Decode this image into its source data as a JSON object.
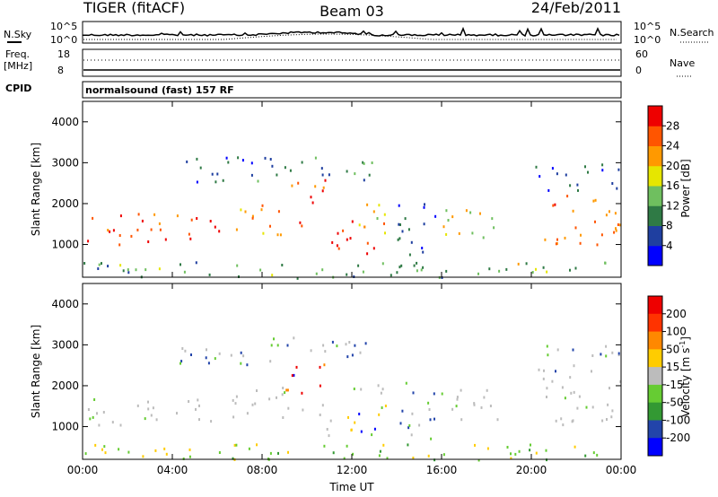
{
  "header": {
    "radar": "TIGER (fitACF)",
    "beam": "Beam 03",
    "date": "24/Feb/2011"
  },
  "noise_panel": {
    "left_label": "N.Sky",
    "right_label": "N.Search",
    "left_ticks": [
      "10^5",
      "10^0"
    ],
    "right_ticks": [
      "10^5",
      "10^0"
    ]
  },
  "freq_panel": {
    "left_label_1": "Freq.",
    "left_label_2": "[MHz]",
    "right_label": "Nave",
    "left_ticks": [
      "18",
      "8"
    ],
    "right_ticks": [
      "60",
      "0"
    ]
  },
  "cpid_panel": {
    "label": "CPID",
    "text": "normalsound (fast) 157 RF"
  },
  "colors": {
    "power_scale": [
      "#0000ff",
      "#1f3fa0",
      "#2f7a45",
      "#6fbf5f",
      "#e6e600",
      "#ff9900",
      "#ff5500",
      "#ee0000"
    ],
    "velocity_scale": [
      "#ee0000",
      "#ff3300",
      "#ff8800",
      "#ffcc00",
      "#bcbcbc",
      "#66cc33",
      "#339933",
      "#2244aa",
      "#0000ff"
    ]
  },
  "chart_data": [
    {
      "type": "heatmap",
      "name": "power",
      "ylabel": "Slant Range [km]",
      "xlabel": "Time UT",
      "ylim": [
        200,
        4500
      ],
      "xlim": [
        "00:00",
        "24:00"
      ],
      "y_ticks": [
        "1000",
        "2000",
        "3000",
        "4000"
      ],
      "x_ticks": [
        "00:00",
        "04:00",
        "08:00",
        "12:00",
        "16:00",
        "20:00",
        "00:00"
      ],
      "colorbar": {
        "label": "Power [dB]",
        "ticks": [
          "4",
          "8",
          "12",
          "16",
          "20",
          "24",
          "28"
        ]
      }
    },
    {
      "type": "heatmap",
      "name": "velocity",
      "ylabel": "Slant Range [km]",
      "xlabel": "Time UT",
      "ylim": [
        200,
        4500
      ],
      "xlim": [
        "00:00",
        "24:00"
      ],
      "y_ticks": [
        "1000",
        "2000",
        "3000",
        "4000"
      ],
      "x_ticks": [
        "00:00",
        "04:00",
        "08:00",
        "12:00",
        "16:00",
        "20:00",
        "00:00"
      ],
      "colorbar": {
        "label": "Velocity [m s",
        "label_sup": "-1",
        "label_end": "]",
        "ticks": [
          "200",
          "100",
          "50",
          "15",
          "-15",
          "-50",
          "-100",
          "-200"
        ]
      }
    }
  ]
}
